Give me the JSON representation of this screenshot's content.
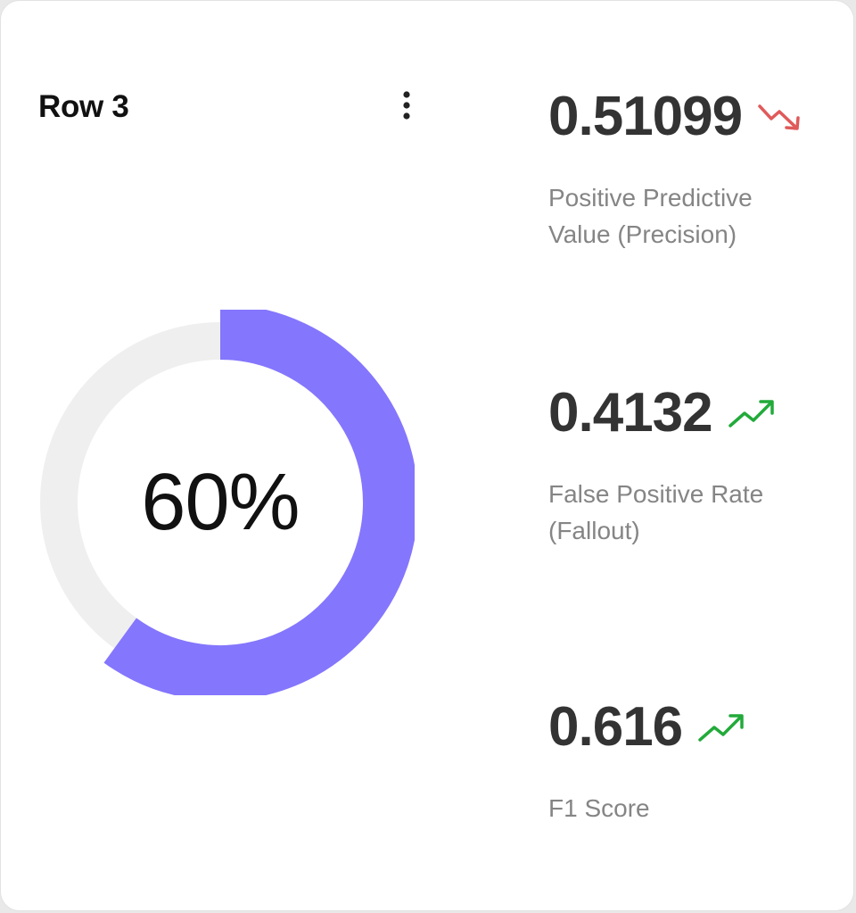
{
  "card": {
    "title": "Row 3",
    "menu_icon": "more-vertical-icon"
  },
  "gauge": {
    "percent": 60,
    "label": "60%",
    "fill_color": "#8476fd",
    "track_color": "#efefef"
  },
  "metrics": [
    {
      "value": "0.51099",
      "label": "Positive Predictive Value (Precision)",
      "trend": "down",
      "trend_icon": "trending-down-icon",
      "trend_color": "#e05a5a"
    },
    {
      "value": "0.4132",
      "label": "False Positive Rate (Fallout)",
      "trend": "up",
      "trend_icon": "trending-up-icon",
      "trend_color": "#22aa3a"
    },
    {
      "value": "0.616",
      "label": "F1 Score",
      "trend": "up",
      "trend_icon": "trending-up-icon",
      "trend_color": "#22aa3a"
    }
  ]
}
